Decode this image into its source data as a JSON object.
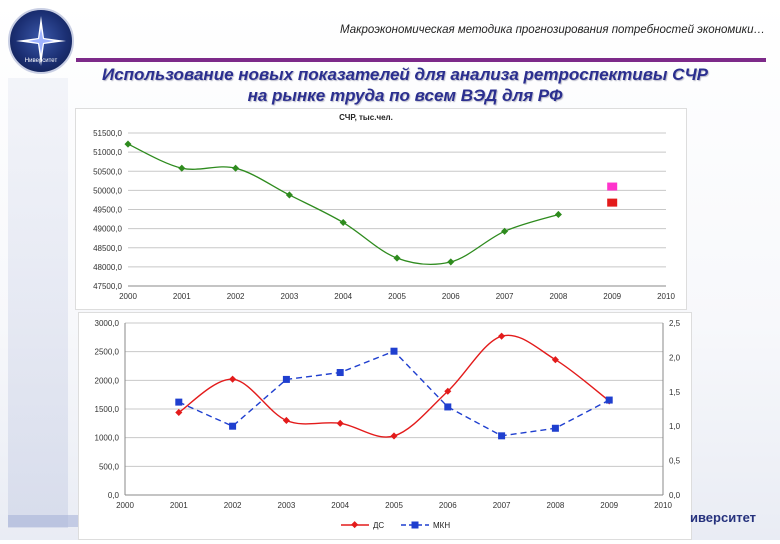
{
  "header": {
    "subtitle": "Макроэкономическая методика прогнозирования потребностей экономики…",
    "title_line1": "Использование новых показателей для анализа ретроспективы СЧР",
    "title_line2": "на рынке труда по всем ВЭД для РФ",
    "logo_text": "Ниверситет"
  },
  "footer": {
    "text": "иверситет"
  },
  "colors": {
    "green": "#2e8b1e",
    "red": "#e31b1b",
    "blue": "#1f3fcf",
    "magenta": "#ff33cc",
    "title": "#2b2f8f"
  },
  "chart_data": [
    {
      "type": "line",
      "title": "СЧР, тыс.чел.",
      "x": [
        "2000",
        "2001",
        "2002",
        "2003",
        "2004",
        "2005",
        "2006",
        "2007",
        "2008",
        "2009",
        "2010"
      ],
      "ylim": [
        47500,
        51500
      ],
      "yticks": [
        "47500,0",
        "48000,0",
        "48500,0",
        "49000,0",
        "49500,0",
        "50000,0",
        "50500,0",
        "51000,0",
        "51500,0"
      ],
      "series": [
        {
          "values": [
            51210,
            50580,
            50580,
            49880,
            49160,
            48230,
            48130,
            48930,
            49370,
            null,
            null
          ]
        }
      ],
      "markers": [
        {
          "x": "2009",
          "y": 50100,
          "color": "#ff33cc"
        },
        {
          "x": "2009",
          "y": 49680,
          "color": "#e31b1b"
        }
      ],
      "grid": true
    },
    {
      "type": "line",
      "x": [
        "2000",
        "2001",
        "2002",
        "2003",
        "2004",
        "2005",
        "2006",
        "2007",
        "2008",
        "2009",
        "2010"
      ],
      "ylim_left": [
        0,
        3000
      ],
      "yticks_left": [
        "0,0",
        "500,0",
        "1000,0",
        "1500,0",
        "2000,0",
        "2500,0",
        "3000,0"
      ],
      "ylim_right": [
        0,
        2.5
      ],
      "yticks_right": [
        "0,0",
        "0,5",
        "1,0",
        "1,5",
        "2,0",
        "2,5"
      ],
      "series": [
        {
          "name": "ДС",
          "axis": "left",
          "values": [
            null,
            1440,
            2020,
            1300,
            1250,
            1030,
            1810,
            2770,
            2360,
            1640,
            null
          ]
        },
        {
          "name": "МКН",
          "axis": "right",
          "values": [
            null,
            1.35,
            1.0,
            1.68,
            1.78,
            2.09,
            1.28,
            0.86,
            0.97,
            1.38,
            null
          ]
        }
      ],
      "legend": "bottom",
      "grid": true
    }
  ]
}
